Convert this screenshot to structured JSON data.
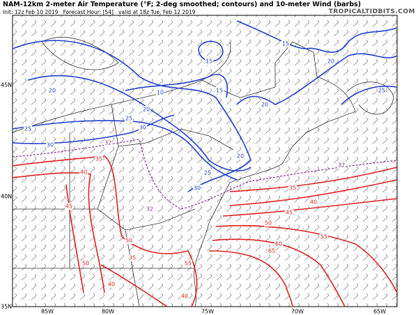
{
  "header": {
    "title": "NAM-12km 2-meter Air Temperature (°F; 2-deg smoothed; contours) and 10-meter Wind (barbs)",
    "subtitle": "Init: 12z Feb 10 2019   Forecast Hour: [54]   valid at 18z Tue, Feb 12 2019",
    "website": "TROPICALTIDBITS.COM"
  },
  "axes": {
    "lat_labels": [
      "45N",
      "40N",
      "35N"
    ],
    "lon_labels": [
      "85W",
      "80W",
      "75W",
      "70W",
      "65W"
    ]
  },
  "contour_labels": {
    "blue": [
      15,
      15,
      20,
      25,
      20,
      10,
      15,
      20,
      20,
      25,
      25,
      30,
      30,
      20,
      25,
      30
    ],
    "purple": [
      32,
      32,
      32
    ],
    "red": [
      35,
      40,
      45,
      50,
      35,
      40,
      45,
      50,
      55,
      60,
      65,
      50,
      55,
      35,
      40,
      40
    ]
  }
}
